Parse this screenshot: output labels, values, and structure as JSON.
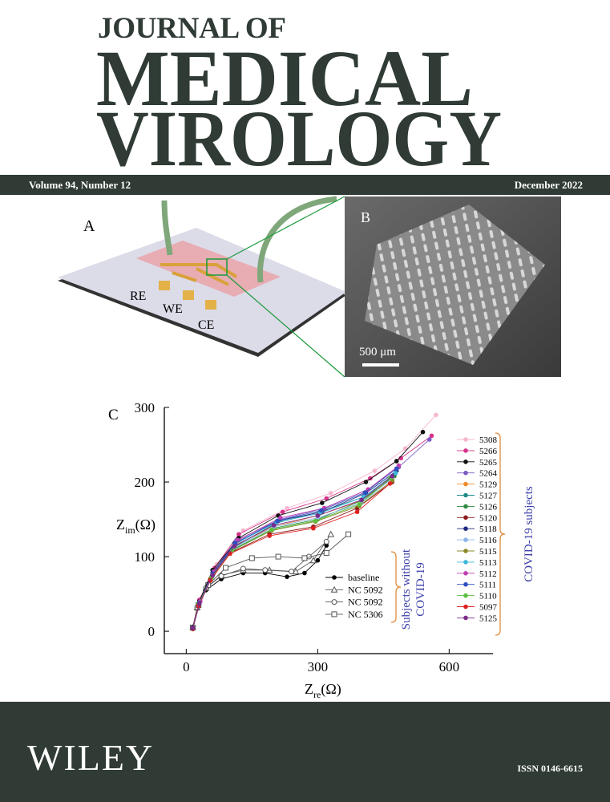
{
  "header": {
    "line1": "JOURNAL OF",
    "line2": "MEDICAL",
    "line3": "VIROLOGY",
    "volume": "Volume 94, Number 12",
    "date": "December 2022"
  },
  "figure": {
    "panel_a": "A",
    "panel_b": "B",
    "panel_c": "C",
    "electrodes": [
      "RE",
      "WE",
      "CE"
    ],
    "scale_bar": "500 μm"
  },
  "chart_data": {
    "type": "line",
    "x_label": {
      "main": "Z",
      "sub": "re",
      "unit": "(Ω)"
    },
    "y_label": {
      "main": "Z",
      "sub": "im",
      "unit": "(Ω)"
    },
    "xlim": [
      -50,
      700
    ],
    "xticks": [
      0,
      300,
      600
    ],
    "ylim": [
      -30,
      300
    ],
    "yticks": [
      0,
      100,
      200,
      300
    ],
    "groups": [
      {
        "label": [
          "Subjects without",
          "COVID-19"
        ],
        "series": [
          {
            "name": "baseline",
            "color": "#000000",
            "marker": "circle-filled",
            "x": [
              15,
              25,
              45,
              80,
              130,
              180,
              230,
              270,
              300,
              320
            ],
            "values": [
              5,
              30,
              55,
              70,
              78,
              78,
              73,
              78,
              95,
              115
            ]
          },
          {
            "name": "NC 5092",
            "color": "#555555",
            "marker": "triangle-open",
            "x": [
              15,
              25,
              45,
              80,
              130,
              190,
              250,
              290,
              330
            ],
            "values": [
              5,
              32,
              58,
              75,
              82,
              82,
              80,
              95,
              130
            ]
          },
          {
            "name": "NC 5092",
            "color": "#555555",
            "marker": "circle-open",
            "x": [
              15,
              25,
              45,
              80,
              130,
              180,
              240,
              280,
              320
            ],
            "values": [
              5,
              32,
              58,
              74,
              84,
              82,
              80,
              100,
              120
            ]
          },
          {
            "name": "NC 5306",
            "color": "#555555",
            "marker": "square-open",
            "x": [
              15,
              28,
              50,
              90,
              150,
              210,
              270,
              320,
              370
            ],
            "values": [
              5,
              35,
              62,
              85,
              98,
              100,
              98,
              105,
              130
            ]
          }
        ]
      },
      {
        "label": [
          "COVID-19 subjects"
        ],
        "series": [
          {
            "name": "5308",
            "color": "#f7b6cf",
            "marker": "circle-filled",
            "x": [
              15,
              35,
              70,
              130,
              230,
              330,
              430,
              500,
              570
            ],
            "values": [
              5,
              45,
              90,
              135,
              165,
              185,
              215,
              245,
              290
            ]
          },
          {
            "name": "5266",
            "color": "#d6338a",
            "marker": "circle-filled",
            "x": [
              15,
              30,
              65,
              120,
              220,
              320,
              420,
              490,
              560
            ],
            "values": [
              5,
              42,
              85,
              130,
              160,
              178,
              205,
              232,
              262
            ]
          },
          {
            "name": "5265",
            "color": "#111111",
            "marker": "circle-filled",
            "x": [
              15,
              30,
              60,
              120,
              210,
              310,
              410,
              480,
              540
            ],
            "values": [
              5,
              40,
              82,
              125,
              155,
              172,
              200,
              228,
              267
            ]
          },
          {
            "name": "5264",
            "color": "#7a5cc4",
            "marker": "circle-filled",
            "x": [
              15,
              32,
              62,
              115,
              215,
              315,
              415,
              485,
              555
            ],
            "values": [
              4,
              40,
              80,
              122,
              150,
              165,
              190,
              220,
              257
            ]
          },
          {
            "name": "5129",
            "color": "#f08a2c",
            "marker": "circle-filled",
            "x": [
              15,
              30,
              60,
              110,
              200,
              300,
              400,
              470
            ],
            "values": [
              4,
              38,
              76,
              115,
              140,
              155,
              175,
              205
            ]
          },
          {
            "name": "5127",
            "color": "#1f8a8a",
            "marker": "circle-filled",
            "x": [
              15,
              30,
              60,
              110,
              205,
              305,
              405,
              475
            ],
            "values": [
              4,
              37,
              75,
              113,
              145,
              160,
              180,
              210
            ]
          },
          {
            "name": "5126",
            "color": "#2e8b3e",
            "marker": "circle-filled",
            "x": [
              15,
              30,
              58,
              108,
              200,
              300,
              400,
              475
            ],
            "values": [
              4,
              36,
              72,
              110,
              138,
              150,
              175,
              208
            ]
          },
          {
            "name": "5120",
            "color": "#8b1a1a",
            "marker": "circle-filled",
            "x": [
              15,
              28,
              55,
              100,
              190,
              290,
              390,
              470
            ],
            "values": [
              3,
              35,
              70,
              105,
              130,
              140,
              165,
              200
            ]
          },
          {
            "name": "5118",
            "color": "#1f2a80",
            "marker": "circle-filled",
            "x": [
              15,
              30,
              60,
              110,
              210,
              310,
              410,
              480
            ],
            "values": [
              4,
              38,
              78,
              118,
              148,
              160,
              185,
              215
            ]
          },
          {
            "name": "5116",
            "color": "#8fb5e8",
            "marker": "circle-filled",
            "x": [
              15,
              30,
              60,
              110,
              200,
              300,
              400,
              470
            ],
            "values": [
              4,
              37,
              74,
              112,
              140,
              152,
              172,
              205
            ]
          },
          {
            "name": "5115",
            "color": "#8a8a2a",
            "marker": "circle-filled",
            "x": [
              15,
              28,
              58,
              105,
              195,
              295,
              395,
              470
            ],
            "values": [
              3,
              36,
              72,
              108,
              135,
              147,
              168,
              202
            ]
          },
          {
            "name": "5113",
            "color": "#3fb8d8",
            "marker": "circle-filled",
            "x": [
              15,
              30,
              60,
              110,
              205,
              305,
              405,
              478
            ],
            "values": [
              4,
              38,
              76,
              116,
              146,
              158,
              180,
              212
            ]
          },
          {
            "name": "5112",
            "color": "#c040b0",
            "marker": "circle-filled",
            "x": [
              15,
              32,
              65,
              118,
              215,
              315,
              415,
              485
            ],
            "values": [
              4,
              40,
              80,
              122,
              152,
              165,
              190,
              222
            ]
          },
          {
            "name": "5111",
            "color": "#3050c0",
            "marker": "circle-filled",
            "x": [
              15,
              30,
              62,
              112,
              208,
              308,
              408,
              480
            ],
            "values": [
              4,
              38,
              77,
              118,
              148,
              162,
              186,
              218
            ]
          },
          {
            "name": "5110",
            "color": "#5cc040",
            "marker": "circle-filled",
            "x": [
              15,
              28,
              58,
              105,
              195,
              295,
              395,
              465
            ],
            "values": [
              3,
              36,
              72,
              108,
              136,
              148,
              170,
              205
            ]
          },
          {
            "name": "5097",
            "color": "#e02020",
            "marker": "circle-filled",
            "x": [
              15,
              28,
              55,
              100,
              190,
              290,
              390,
              465
            ],
            "values": [
              3,
              34,
              68,
              104,
              128,
              138,
              160,
              198
            ]
          },
          {
            "name": "5125",
            "color": "#7a2a8a",
            "marker": "circle-filled",
            "x": [
              15,
              30,
              60,
              110,
              200,
              300,
              400,
              470
            ],
            "values": [
              4,
              37,
              75,
              114,
              142,
              155,
              176,
              208
            ]
          }
        ]
      }
    ]
  },
  "footer": {
    "publisher": "WILEY",
    "issn": "ISSN 0146-6615"
  }
}
